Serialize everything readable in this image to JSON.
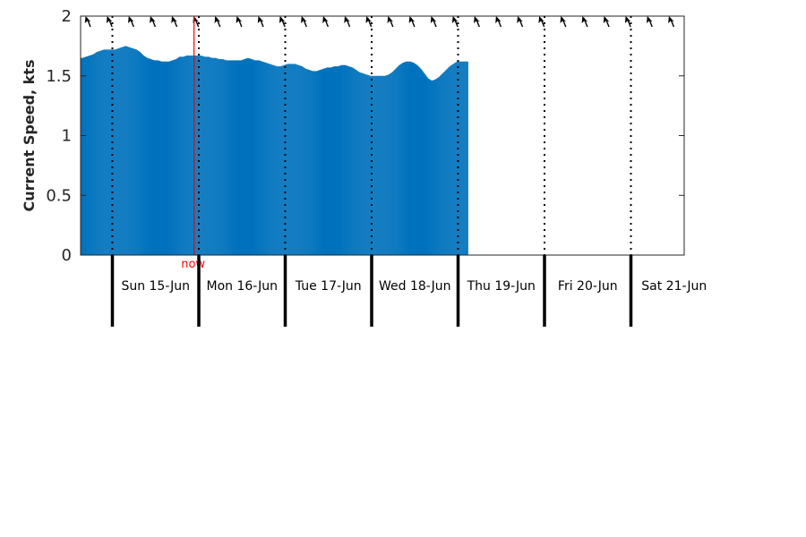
{
  "chart_data": {
    "type": "bar",
    "title": "",
    "xlabel": "",
    "ylabel": "Current Speed, kts",
    "ylim": [
      0,
      2
    ],
    "yticks": [
      "0",
      "0.5",
      "1",
      "1.5",
      "2"
    ],
    "grid": false,
    "bar_color": "#0072bd",
    "days": [
      "Sun 15-Jun",
      "Mon 16-Jun",
      "Tue 17-Jun",
      "Wed 18-Jun",
      "Thu 19-Jun",
      "Fri 20-Jun",
      "Sat 21-Jun"
    ],
    "start_hour": 14.67,
    "samples_per_hour": 4,
    "hourly_speed": [
      1.65,
      1.65,
      1.66,
      1.67,
      1.68,
      1.7,
      1.71,
      1.72,
      1.72,
      1.72,
      1.72,
      1.73,
      1.74,
      1.75,
      1.74,
      1.73,
      1.72,
      1.7,
      1.67,
      1.65,
      1.64,
      1.63,
      1.63,
      1.62,
      1.62,
      1.62,
      1.63,
      1.64,
      1.66,
      1.66,
      1.67,
      1.67,
      1.67,
      1.67,
      1.67,
      1.66,
      1.66,
      1.65,
      1.65,
      1.64,
      1.64,
      1.63,
      1.63,
      1.63,
      1.63,
      1.63,
      1.64,
      1.65,
      1.64,
      1.63,
      1.63,
      1.62,
      1.61,
      1.6,
      1.59,
      1.58,
      1.58,
      1.59,
      1.6,
      1.6,
      1.6,
      1.59,
      1.58,
      1.56,
      1.55,
      1.54,
      1.54,
      1.55,
      1.56,
      1.57,
      1.57,
      1.58,
      1.58,
      1.59,
      1.59,
      1.58,
      1.57,
      1.55,
      1.53,
      1.52,
      1.51,
      1.5,
      1.5,
      1.5,
      1.5,
      1.5,
      1.51,
      1.53,
      1.56,
      1.59,
      1.61,
      1.62,
      1.62,
      1.61,
      1.59,
      1.56,
      1.52,
      1.48,
      1.46,
      1.47,
      1.49,
      1.52,
      1.55,
      1.58,
      1.6,
      1.62,
      1.62,
      1.62,
      1.62
    ],
    "direction_arrows": 30,
    "now_label": "now",
    "now_color": "#ff0000",
    "now_hour": 22.67
  }
}
